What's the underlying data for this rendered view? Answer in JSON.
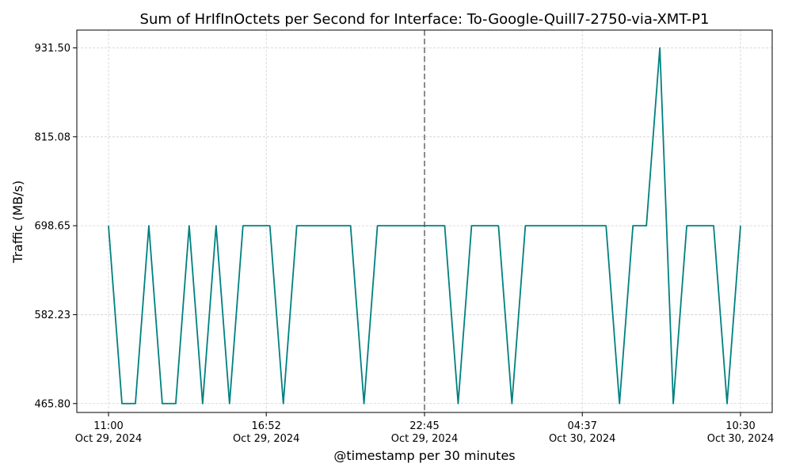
{
  "chart_data": {
    "type": "line",
    "title": "Sum of HrIfInOctets per Second for Interface: To-Google-Quill7-2750-via-XMT-P1",
    "xlabel": "@timestamp per 30 minutes",
    "ylabel": "Traffic (MB/s)",
    "x_start": "2024-10-29T11:00",
    "x_interval_minutes": 30,
    "xticks": [
      {
        "time": "11:00",
        "date": "Oct 29, 2024",
        "index": 0
      },
      {
        "time": "16:52",
        "date": "Oct 29, 2024",
        "index": 11.7333
      },
      {
        "time": "22:45",
        "date": "Oct 29, 2024",
        "index": 23.5
      },
      {
        "time": "04:37",
        "date": "Oct 30, 2024",
        "index": 35.2333
      },
      {
        "time": "10:30",
        "date": "Oct 30, 2024",
        "index": 47
      }
    ],
    "yticks": [
      "465.80",
      "582.23",
      "698.65",
      "815.08",
      "931.50"
    ],
    "ylim": [
      454.16,
      954.79
    ],
    "grid": true,
    "vline": {
      "index": 23.5,
      "style": "dashed",
      "color": "#808080"
    },
    "series": [
      {
        "color": "#008080",
        "values": [
          698.65,
          465.8,
          465.8,
          698.65,
          465.8,
          465.8,
          698.65,
          465.8,
          698.65,
          465.8,
          698.65,
          698.65,
          698.65,
          465.8,
          698.65,
          698.65,
          698.65,
          698.65,
          698.65,
          465.8,
          698.65,
          698.65,
          698.65,
          698.65,
          698.65,
          698.65,
          465.8,
          698.65,
          698.65,
          698.65,
          465.8,
          698.65,
          698.65,
          698.65,
          698.65,
          698.65,
          698.65,
          698.65,
          465.8,
          698.65,
          698.65,
          931.5,
          465.8,
          698.65,
          698.65,
          698.65,
          465.8,
          698.65
        ]
      }
    ]
  }
}
